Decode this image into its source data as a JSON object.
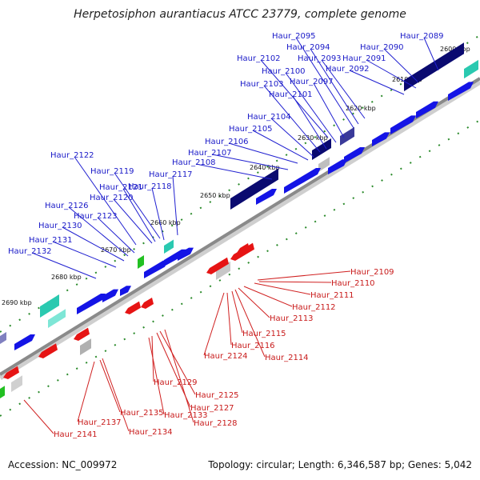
{
  "title": "Herpetosiphon aurantiacus ATCC 23779, complete genome",
  "footer": {
    "accession": "Accession: NC_009972",
    "topology": "Topology: circular; Length: 6,346,587 bp; Genes: 5,042"
  },
  "colors": {
    "forward_gene": "#1414e6",
    "reverse_gene": "#e61414",
    "navy_block": "#0a0a70",
    "teal_block": "#2ac9b0",
    "green_block": "#22c022",
    "axis": "#888888",
    "tick": "#228822"
  },
  "kbp_ticks": [
    "2600 kbp",
    "2610 kbp",
    "2620 kbp",
    "2630 kbp",
    "2640 kbp",
    "2650 kbp",
    "2660 kbp",
    "2670 kbp",
    "2680 kbp",
    "2690 kbp"
  ],
  "forward_labels": [
    "Haur_2089",
    "Haur_2090",
    "Haur_2091",
    "Haur_2092",
    "Haur_2093",
    "Haur_2094",
    "Haur_2095",
    "Haur_2097",
    "Haur_2100",
    "Haur_2101",
    "Haur_2102",
    "Haur_2103",
    "Haur_2104",
    "Haur_2105",
    "Haur_2106",
    "Haur_2107",
    "Haur_2108",
    "Haur_2117",
    "Haur_2118",
    "Haur_2119",
    "Haur_2120",
    "Haur_2121",
    "Haur_2122",
    "Haur_2123",
    "Haur_2126",
    "Haur_2130",
    "Haur_2131",
    "Haur_2132"
  ],
  "reverse_labels": [
    "Haur_2109",
    "Haur_2110",
    "Haur_2111",
    "Haur_2112",
    "Haur_2113",
    "Haur_2115",
    "Haur_2116",
    "Haur_2114",
    "Haur_2124",
    "Haur_2129",
    "Haur_2125",
    "Haur_2127",
    "Haur_2133",
    "Haur_2128",
    "Haur_2135",
    "Haur_2137",
    "Haur_2134",
    "Haur_2141"
  ]
}
